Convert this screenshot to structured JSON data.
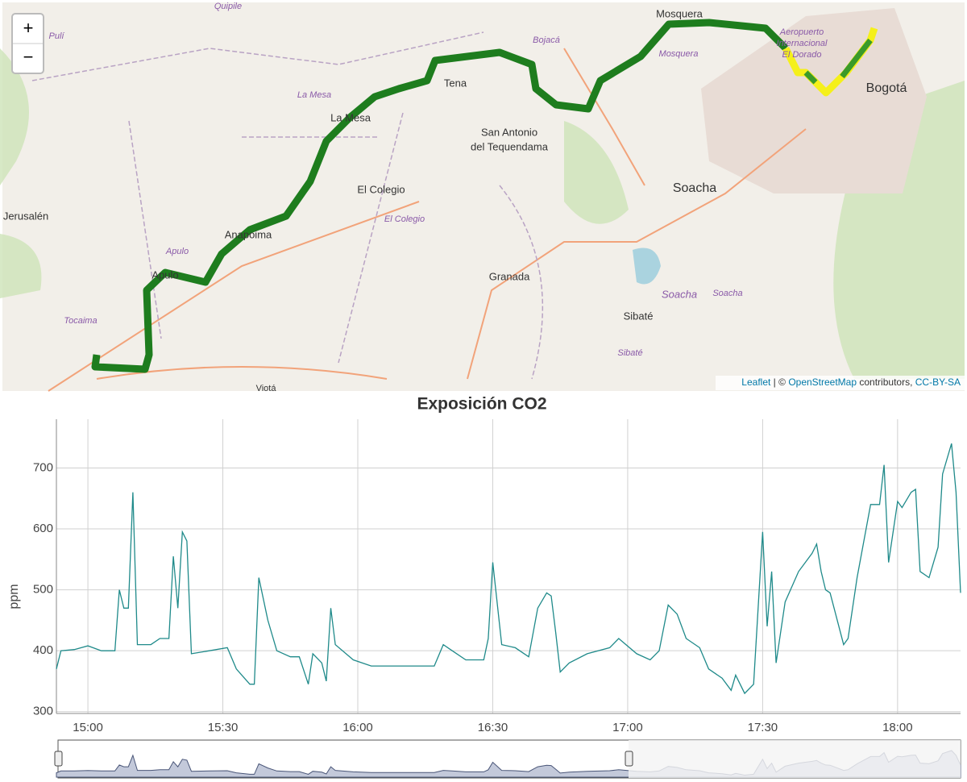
{
  "map": {
    "zoom_in": "+",
    "zoom_out": "−",
    "labels": [
      "Quipile",
      "Pulí",
      "Bojacá",
      "Mosquera",
      "Mosquera",
      "Aeropuerto",
      "Internacional",
      "El Dorado",
      "Bogotá",
      "Tena",
      "La Mesa",
      "La Mesa",
      "San Antonio",
      "del Tequendama",
      "El Colegio",
      "El Colegio",
      "Jerusalén",
      "Soacha",
      "Anapoima",
      "Apulo",
      "Apulo",
      "Granada",
      "Soacha",
      "Soacha",
      "Tocaima",
      "Sibaté",
      "Sibaté",
      "Viotá"
    ],
    "attribution": {
      "leaflet": "Leaflet",
      "separator": "| ©",
      "osm": "OpenStreetMap",
      "contributors": "contributors,",
      "license": "CC-BY-SA"
    }
  },
  "chart_data": {
    "type": "line",
    "title": "Exposición CO2",
    "y_label": "ppm",
    "x": [
      "14:53",
      "14:54",
      "14:57",
      "15:00",
      "15:03",
      "15:06",
      "15:07",
      "15:08",
      "15:09",
      "15:10",
      "15:11",
      "15:14",
      "15:16",
      "15:18",
      "15:19",
      "15:20",
      "15:21",
      "15:22",
      "15:23",
      "15:27",
      "15:31",
      "15:33",
      "15:36",
      "15:37",
      "15:38",
      "15:40",
      "15:42",
      "15:45",
      "15:47",
      "15:49",
      "15:50",
      "15:52",
      "15:53",
      "15:54",
      "15:55",
      "15:59",
      "16:03",
      "16:10",
      "16:17",
      "16:19",
      "16:21",
      "16:24",
      "16:28",
      "16:29",
      "16:30",
      "16:32",
      "16:35",
      "16:37",
      "16:38",
      "16:40",
      "16:42",
      "16:43",
      "16:44",
      "16:45",
      "16:47",
      "16:51",
      "16:56",
      "16:58",
      "17:02",
      "17:05",
      "17:07",
      "17:09",
      "17:11",
      "17:13",
      "17:16",
      "17:18",
      "17:21",
      "17:23",
      "17:24",
      "17:26",
      "17:28",
      "17:30",
      "17:31",
      "17:32",
      "17:33",
      "17:35",
      "17:38",
      "17:41",
      "17:42",
      "17:43",
      "17:44",
      "17:45",
      "17:48",
      "17:49",
      "17:51",
      "17:53",
      "17:54",
      "17:56",
      "17:57",
      "17:58",
      "18:00",
      "18:01",
      "18:03",
      "18:04",
      "18:05",
      "18:07",
      "18:09",
      "18:10",
      "18:12",
      "18:13",
      "18:14"
    ],
    "values": [
      370,
      400,
      402,
      408,
      400,
      400,
      500,
      470,
      470,
      660,
      410,
      410,
      420,
      420,
      555,
      470,
      595,
      580,
      395,
      400,
      405,
      370,
      345,
      345,
      520,
      450,
      400,
      390,
      390,
      345,
      395,
      380,
      350,
      470,
      410,
      385,
      375,
      375,
      375,
      410,
      400,
      385,
      385,
      420,
      545,
      410,
      405,
      395,
      390,
      470,
      495,
      490,
      430,
      365,
      380,
      395,
      405,
      420,
      395,
      385,
      400,
      475,
      460,
      420,
      405,
      370,
      355,
      335,
      360,
      330,
      345,
      595,
      440,
      530,
      380,
      480,
      530,
      560,
      575,
      530,
      500,
      495,
      410,
      420,
      520,
      600,
      640,
      640,
      705,
      545,
      645,
      635,
      660,
      665,
      530,
      520,
      570,
      690,
      740,
      660,
      495
    ],
    "color": "#1f8a8a",
    "xlim": [
      "14:53",
      "18:14"
    ],
    "ylim": [
      297,
      780
    ],
    "xticks": [
      "15:00",
      "15:30",
      "16:00",
      "16:30",
      "17:00",
      "17:30",
      "18:00"
    ],
    "yticks": [
      300,
      400,
      500,
      600,
      700
    ],
    "grid": true
  }
}
